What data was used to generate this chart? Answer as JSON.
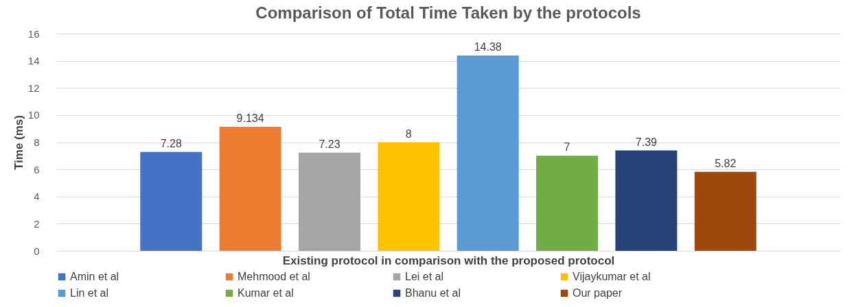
{
  "chart_data": {
    "type": "bar",
    "title": "Comparison of Total Time Taken by the protocols",
    "xlabel": "Existing protocol in comparison with the proposed protocol",
    "ylabel": "Time (ms)",
    "categories": [
      null
    ],
    "series": [
      {
        "name": "Amin et al",
        "color": "#4472c4",
        "values": [
          7.28
        ]
      },
      {
        "name": "Mehmood et al",
        "color": "#ed7d31",
        "values": [
          9.134
        ]
      },
      {
        "name": "Lei et al",
        "color": "#a5a5a5",
        "values": [
          7.23
        ]
      },
      {
        "name": "Vijaykumar et al",
        "color": "#ffc000",
        "values": [
          8
        ]
      },
      {
        "name": "Lin et al",
        "color": "#5b9bd5",
        "values": [
          14.38
        ]
      },
      {
        "name": "Kumar et al",
        "color": "#70ad47",
        "values": [
          7
        ]
      },
      {
        "name": "Bhanu et al",
        "color": "#264478",
        "values": [
          7.39
        ]
      },
      {
        "name": "Our paper",
        "color": "#9e480e",
        "values": [
          5.82
        ]
      }
    ],
    "ylim": [
      0,
      16
    ],
    "yticks": [
      0,
      2,
      4,
      6,
      8,
      10,
      12,
      14,
      16
    ],
    "grid": "y",
    "legend": "bottom",
    "data_labels": true
  }
}
